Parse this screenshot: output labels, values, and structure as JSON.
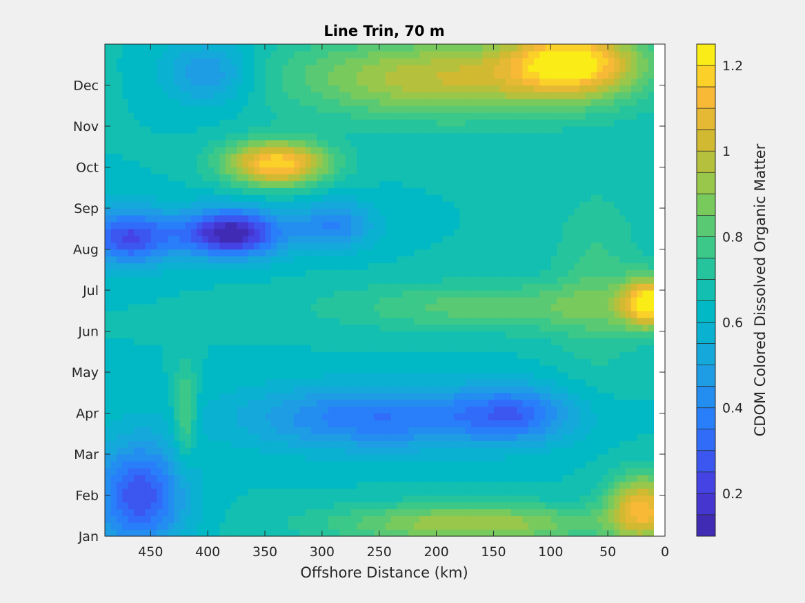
{
  "chart_data": {
    "type": "heatmap",
    "title": "Line Trin, 70 m",
    "xlabel": "Offshore Distance (km)",
    "ylabel": "",
    "colorbar_label": "CDOM Colored Dissolved Organic Matter",
    "x_reversed": true,
    "xlim": [
      0,
      490
    ],
    "ylim": [
      0,
      12
    ],
    "data_xrange": [
      10,
      490
    ],
    "x_ticks": [
      450,
      400,
      350,
      300,
      250,
      200,
      150,
      100,
      50,
      0
    ],
    "y_ticks": [
      0,
      1,
      2,
      3,
      4,
      5,
      6,
      7,
      8,
      9,
      10,
      11
    ],
    "y_tick_labels": [
      "Jan",
      "Feb",
      "Mar",
      "Apr",
      "May",
      "Jun",
      "Jul",
      "Aug",
      "Sep",
      "Oct",
      "Nov",
      "Dec"
    ],
    "clim": [
      0.1,
      1.25
    ],
    "colorbar_ticks": [
      0.2,
      0.4,
      0.6,
      0.8,
      1,
      1.2
    ],
    "colorbar_levels": 23,
    "colormap": "parula",
    "background": 0.65,
    "features": [
      {
        "x": 340,
        "y": 9.1,
        "sx": 45,
        "sy": 0.55,
        "v": 0.55
      },
      {
        "x": 80,
        "y": 11.6,
        "sx": 55,
        "sy": 0.8,
        "v": 0.5
      },
      {
        "x": 190,
        "y": 11.2,
        "sx": 140,
        "sy": 1.0,
        "v": 0.35
      },
      {
        "x": 15,
        "y": 5.7,
        "sx": 22,
        "sy": 0.6,
        "v": 0.55
      },
      {
        "x": 20,
        "y": 0.7,
        "sx": 30,
        "sy": 0.8,
        "v": 0.45
      },
      {
        "x": 170,
        "y": 0.3,
        "sx": 120,
        "sy": 0.5,
        "v": 0.3
      },
      {
        "x": 150,
        "y": 5.6,
        "sx": 140,
        "sy": 0.6,
        "v": 0.18
      },
      {
        "x": 380,
        "y": 7.4,
        "sx": 45,
        "sy": 0.6,
        "v": -0.55
      },
      {
        "x": 470,
        "y": 7.3,
        "sx": 40,
        "sy": 0.7,
        "v": -0.4
      },
      {
        "x": 460,
        "y": 1.0,
        "sx": 40,
        "sy": 1.3,
        "v": -0.4
      },
      {
        "x": 250,
        "y": 2.9,
        "sx": 120,
        "sy": 0.8,
        "v": -0.3
      },
      {
        "x": 130,
        "y": 3.0,
        "sx": 50,
        "sy": 0.7,
        "v": -0.25
      },
      {
        "x": 400,
        "y": 11.3,
        "sx": 40,
        "sy": 0.8,
        "v": -0.22
      },
      {
        "x": 290,
        "y": 7.6,
        "sx": 35,
        "sy": 0.6,
        "v": -0.25
      },
      {
        "x": 420,
        "y": 3.0,
        "sx": 10,
        "sy": 1.2,
        "v": 0.2
      },
      {
        "x": 60,
        "y": 6.2,
        "sx": 40,
        "sy": 2.2,
        "v": 0.12
      }
    ]
  }
}
